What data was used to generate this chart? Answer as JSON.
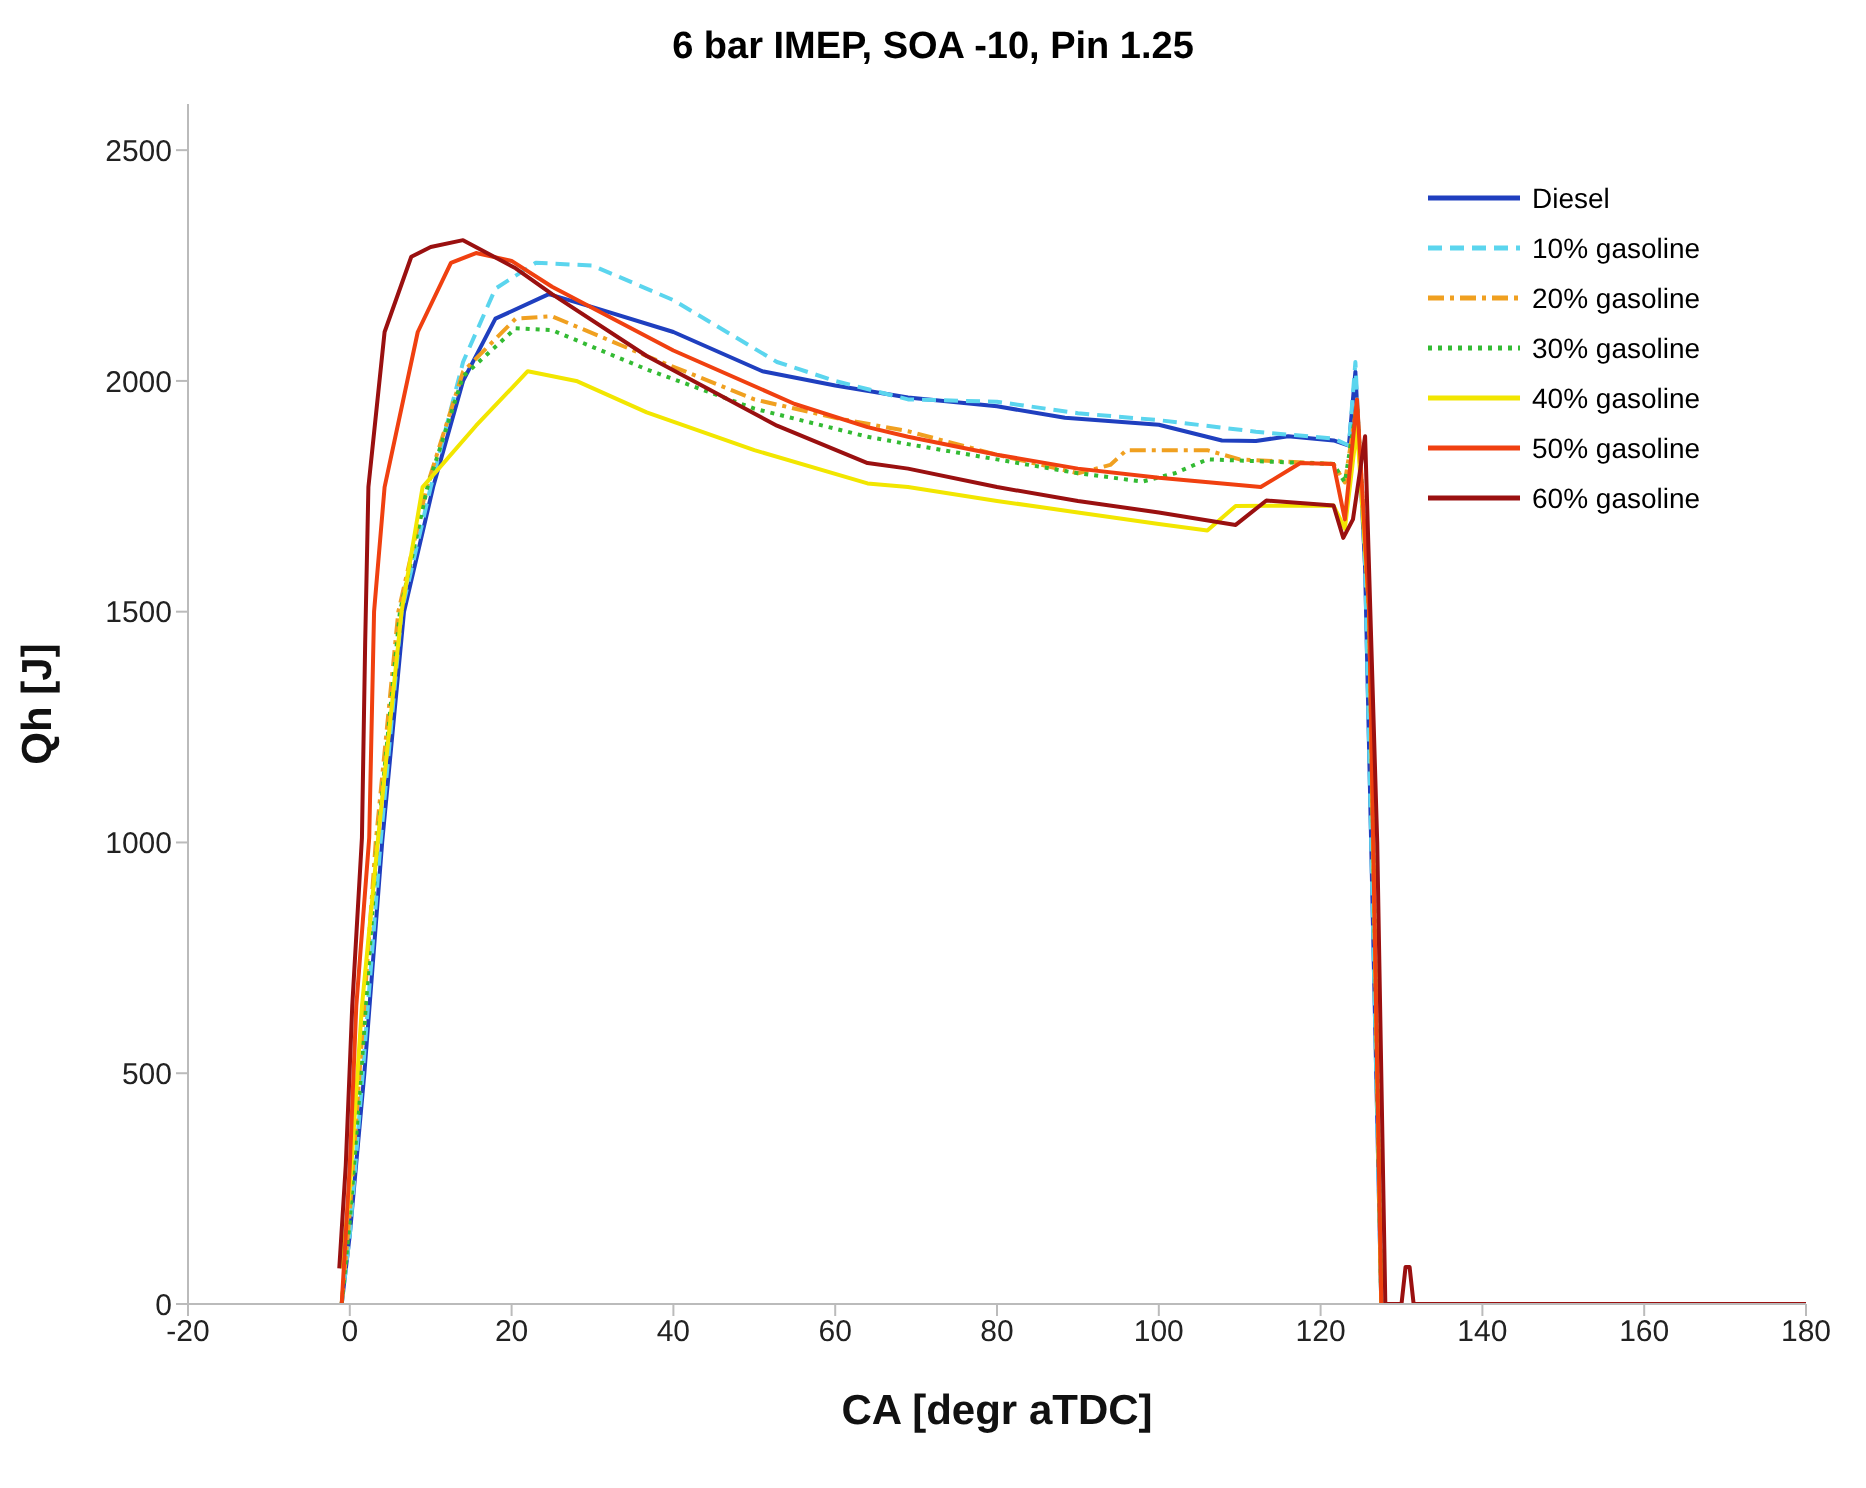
{
  "chart_data": {
    "type": "line",
    "title": "6 bar IMEP, SOA -10, Pin 1.25",
    "xlabel": "CA [degr aTDC]",
    "ylabel": "Qh [J]",
    "xlim": [
      -20,
      180
    ],
    "ylim": [
      0,
      2600
    ],
    "xticks": [
      -20,
      0,
      20,
      40,
      60,
      80,
      100,
      120,
      140,
      160,
      180
    ],
    "yticks": [
      0,
      500,
      1000,
      1500,
      2000,
      2500
    ],
    "grid": false,
    "legend": "top right",
    "marker": "none",
    "series": [
      {
        "name": "Diesel",
        "color": "#1f3fbf",
        "line_style": "solid",
        "x": [
          -1,
          0,
          1.8,
          4,
          6.7,
          10.3,
          14,
          18,
          24.6,
          30,
          40,
          51,
          60,
          69,
          80,
          88.4,
          100,
          107.8,
          112,
          116,
          121.6,
          123.5,
          124.3,
          125.5,
          127.5
        ],
        "values": [
          0,
          150,
          500,
          1000,
          1500,
          1770,
          2000,
          2135,
          2188,
          2160,
          2106,
          2021,
          1990,
          1964,
          1945,
          1920,
          1905,
          1871,
          1870,
          1880,
          1871,
          1860,
          2020,
          1595,
          0
        ]
      },
      {
        "name": "10% gasoline",
        "color": "#5bd5ee",
        "line_style": "dashed",
        "x": [
          -1,
          0,
          1.6,
          3.8,
          6.4,
          10,
          14,
          18,
          23,
          30,
          40,
          52.8,
          60,
          69,
          80,
          90,
          100,
          112,
          121.6,
          123.5,
          124.3,
          125.5,
          127.5
        ],
        "values": [
          0,
          150,
          500,
          1000,
          1500,
          1770,
          2041,
          2200,
          2256,
          2250,
          2175,
          2041,
          2000,
          1960,
          1955,
          1930,
          1915,
          1890,
          1875,
          1860,
          2041,
          1600,
          0
        ]
      },
      {
        "name": "20% gasoline",
        "color": "#f0a020",
        "line_style": "dashdot",
        "x": [
          -1,
          0,
          1.6,
          3.2,
          6,
          9.5,
          14,
          20.5,
          25,
          36.7,
          50,
          60,
          69,
          80,
          90,
          94,
          96,
          106,
          110,
          121.6,
          123,
          124.5,
          126,
          127.5
        ],
        "values": [
          0,
          200,
          600,
          1000,
          1500,
          1770,
          2020,
          2135,
          2140,
          2054,
          1960,
          1920,
          1891,
          1840,
          1800,
          1818,
          1850,
          1850,
          1830,
          1820,
          1780,
          1950,
          1500,
          0
        ]
      },
      {
        "name": "30% gasoline",
        "color": "#33bb33",
        "line_style": "dotted",
        "x": [
          -1,
          0,
          1.6,
          3.4,
          6.2,
          9.6,
          14,
          20.5,
          25,
          36.7,
          50,
          64,
          69,
          80,
          90,
          98,
          102,
          106,
          121.6,
          123,
          124.5,
          126,
          127.5
        ],
        "values": [
          0,
          180,
          550,
          1000,
          1500,
          1770,
          2010,
          2114,
          2110,
          2025,
          1940,
          1879,
          1863,
          1830,
          1800,
          1782,
          1800,
          1830,
          1820,
          1780,
          1950,
          1500,
          0
        ]
      },
      {
        "name": "40% gasoline",
        "color": "#f2e600",
        "line_style": "solid",
        "x": [
          -1,
          0,
          1.5,
          3.5,
          6.4,
          9,
          15.6,
          22,
          28,
          36.7,
          50,
          64,
          69,
          80,
          90,
          100,
          106,
          109.5,
          121.6,
          123,
          124.5,
          126,
          127.5
        ],
        "values": [
          77,
          250,
          645,
          1010,
          1500,
          1770,
          1903,
          2021,
          2000,
          1932,
          1850,
          1778,
          1770,
          1740,
          1715,
          1690,
          1676,
          1729,
          1730,
          1680,
          1900,
          1500,
          0
        ]
      },
      {
        "name": "50% gasoline",
        "color": "#f04010",
        "line_style": "solid",
        "x": [
          -1,
          0,
          0.8,
          2.4,
          3,
          4.3,
          8.4,
          12.5,
          15.6,
          20,
          25,
          40,
          55,
          64,
          69,
          80,
          90,
          100,
          112.6,
          117.5,
          121.6,
          123,
          124.5,
          126,
          127.5
        ],
        "values": [
          0,
          300,
          645,
          1010,
          1500,
          1770,
          2106,
          2256,
          2277,
          2260,
          2204,
          2066,
          1950,
          1900,
          1879,
          1840,
          1810,
          1790,
          1770,
          1822,
          1820,
          1700,
          1960,
          1500,
          0
        ]
      },
      {
        "name": "60% gasoline",
        "color": "#9a1010",
        "line_style": "solid",
        "x": [
          -1.3,
          -0.5,
          0.3,
          1.5,
          1.9,
          2.3,
          4.3,
          7.6,
          10,
          14,
          20.5,
          25,
          36.7,
          52.8,
          64,
          69,
          80,
          90,
          100,
          109.5,
          113.3,
          121.6,
          122.8,
          124,
          125.5,
          127,
          128,
          130,
          130.5,
          131,
          131.5,
          140,
          160,
          180
        ],
        "values": [
          77,
          300,
          645,
          1010,
          1433,
          1770,
          2106,
          2269,
          2290,
          2305,
          2244,
          2188,
          2054,
          1903,
          1822,
          1810,
          1770,
          1740,
          1715,
          1688,
          1741,
          1730,
          1660,
          1700,
          1880,
          1000,
          0,
          0,
          80,
          80,
          0,
          0,
          0,
          0
        ]
      }
    ]
  }
}
